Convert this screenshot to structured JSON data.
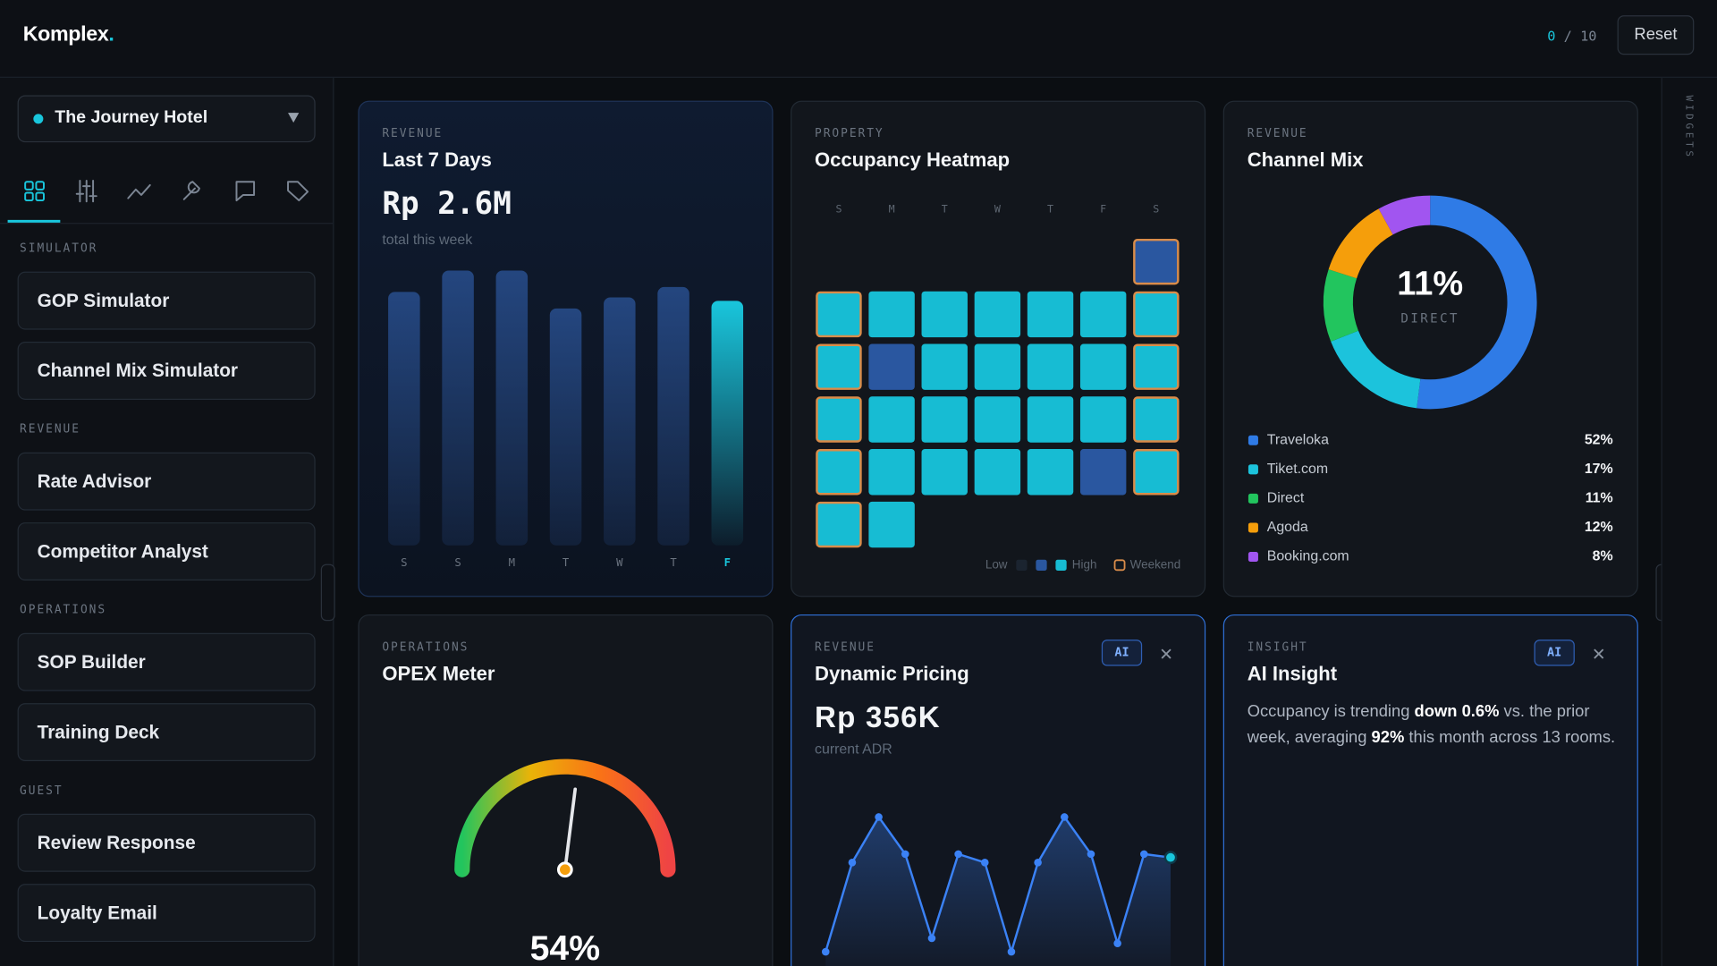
{
  "header": {
    "logo": "Komplex",
    "logo_dot": ".",
    "progress_done": 0,
    "progress_separator": "/",
    "progress_total": 10,
    "reset": "Reset"
  },
  "sidebar": {
    "hotel": "The Journey Hotel",
    "sections": [
      {
        "title": "SIMULATOR",
        "items": [
          "GOP Simulator",
          "Channel Mix Simulator"
        ]
      },
      {
        "title": "REVENUE",
        "items": [
          "Rate Advisor",
          "Competitor Analyst"
        ]
      },
      {
        "title": "OPERATIONS",
        "items": [
          "SOP Builder",
          "Training Deck"
        ]
      },
      {
        "title": "GUEST",
        "items": [
          "Review Response",
          "Loyalty Email"
        ]
      }
    ]
  },
  "rail": {
    "label": "WIDGETS"
  },
  "widgets": {
    "revenue": {
      "eyebrow": "REVENUE",
      "title": "Last 7 Days",
      "value": "Rp 2.6M",
      "caption": "total this week",
      "chart": {
        "type": "bar",
        "categories": [
          "S",
          "S",
          "M",
          "T",
          "W",
          "T",
          "F"
        ],
        "values": [
          368000,
          399000,
          399000,
          344000,
          360000,
          375000,
          355000
        ],
        "color": "#24467f",
        "highlight_color": "#19c6dc"
      }
    },
    "heatmap": {
      "eyebrow": "PROPERTY",
      "title": "Occupancy Heatmap",
      "chart": {
        "type": "heatmap",
        "columns": [
          "S",
          "M",
          "T",
          "W",
          "T",
          "F",
          "S"
        ],
        "cells": [
          null,
          null,
          null,
          null,
          null,
          null,
          1,
          2,
          2,
          2,
          2,
          2,
          2,
          2,
          2,
          1,
          2,
          2,
          2,
          2,
          2,
          2,
          2,
          2,
          2,
          2,
          2,
          2,
          2,
          2,
          2,
          2,
          2,
          1,
          2,
          2,
          2,
          null,
          null,
          null,
          null,
          null
        ],
        "scale_colors": [
          "#1b2430",
          "#2a57a0",
          "#17bcd3"
        ],
        "weekend_columns": [
          0,
          6
        ],
        "weekend_color": "#d98c4a",
        "legend": {
          "low": "Low",
          "high": "High",
          "weekend": "Weekend"
        }
      }
    },
    "channel_mix": {
      "eyebrow": "REVENUE",
      "title": "Channel Mix",
      "chart": {
        "type": "pie",
        "donut": true,
        "center_index": 2,
        "categories": [
          "Traveloka",
          "Tiket.com",
          "Direct",
          "Agoda",
          "Booking.com"
        ],
        "values": [
          52,
          17,
          11,
          12,
          8
        ],
        "value_labels": [
          "52%",
          "17%",
          "11%",
          "12%",
          "8%"
        ],
        "colors": [
          "#2f7be6",
          "#1cc3dc",
          "#22c55e",
          "#f59e0b",
          "#a155f0"
        ]
      }
    },
    "opex": {
      "eyebrow": "OPERATIONS",
      "title": "OPEX Meter",
      "chart": {
        "type": "gauge",
        "ylim": [
          0,
          100
        ],
        "value": 54,
        "value_label": "54%",
        "colors": [
          "#22c55e",
          "#eab308",
          "#f97316",
          "#ef4444"
        ]
      }
    },
    "pricing": {
      "eyebrow": "REVENUE",
      "title": "Dynamic Pricing",
      "badge": "AI",
      "value": "Rp 356K",
      "caption": "current ADR",
      "chart": {
        "type": "line",
        "values": [
          300000,
          353000,
          380000,
          358000,
          308000,
          358000,
          353000,
          300000,
          353000,
          380000,
          358000,
          305000,
          358000,
          356000
        ],
        "color": "#3b82f6",
        "last_color": "#19c6dc"
      }
    },
    "insight": {
      "eyebrow": "INSIGHT",
      "title": "AI Insight",
      "badge": "AI",
      "body": [
        {
          "text": "Occupancy is trending "
        },
        {
          "text": "down 0.6%",
          "bold": true
        },
        {
          "text": " vs. the prior week, averaging "
        },
        {
          "text": "92%",
          "bold": true
        },
        {
          "text": " this month across 13 rooms."
        }
      ]
    }
  }
}
